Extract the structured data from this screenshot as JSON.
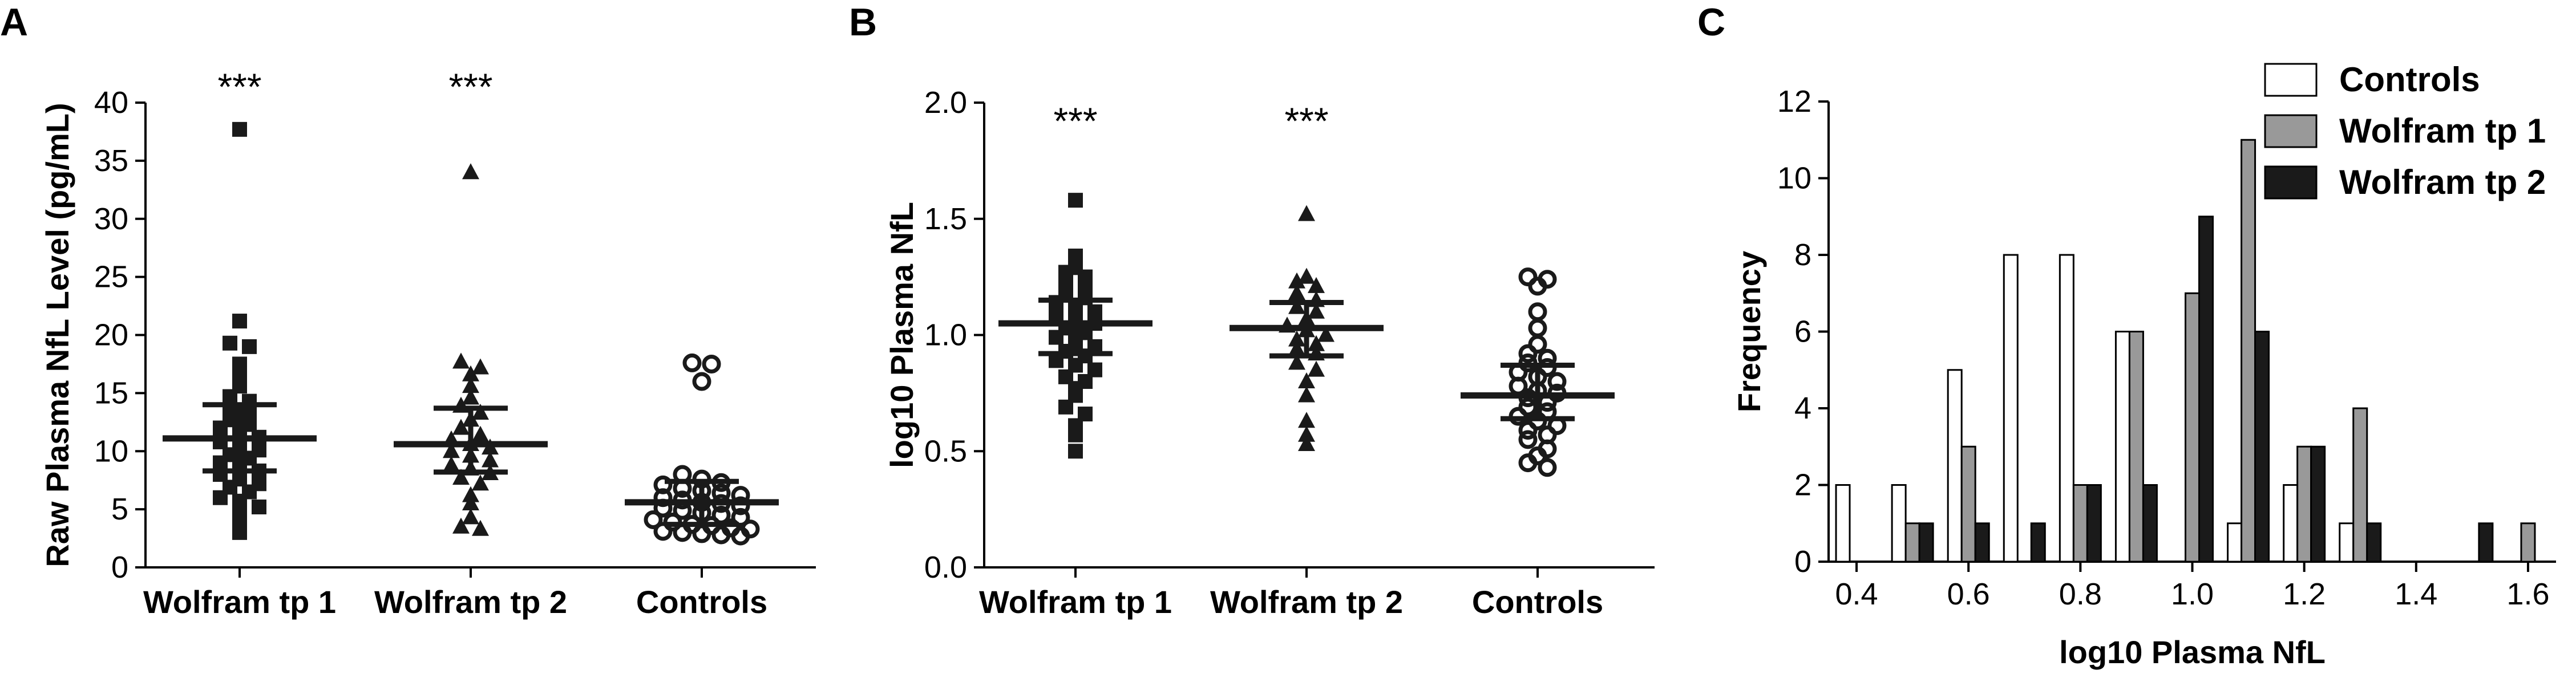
{
  "panel_letters": {
    "a": "A",
    "b": "B",
    "c": "C"
  },
  "colors": {
    "axis": "#000000",
    "controls_fill": "#ffffff",
    "wolfram_tp1_fill": "#999999",
    "wolfram_tp2_fill": "#1a1a1a"
  },
  "chart_data": [
    {
      "panel": "A",
      "type": "scatter",
      "subtype": "dot-plot-with-mean-and-sd",
      "ylabel": "Raw Plasma NfL Level (pg/mL)",
      "xlabel": "",
      "ylim": [
        0,
        40
      ],
      "yticks": [
        "0",
        "5",
        "10",
        "15",
        "20",
        "25",
        "30",
        "35",
        "40"
      ],
      "categories": [
        "Wolfram tp 1",
        "Wolfram tp 2",
        "Controls"
      ],
      "markers": [
        "filled-square",
        "filled-triangle",
        "open-circle"
      ],
      "annotations": [
        "***",
        "***",
        ""
      ],
      "grid": false,
      "series": [
        {
          "category": "Wolfram tp 1",
          "mean": 11.1,
          "sd_low": 8.3,
          "sd_high": 14.0,
          "values": [
            37.7,
            21.2,
            19.3,
            19.0,
            17.5,
            16.3,
            15.6,
            14.7,
            14.3,
            13.8,
            13.4,
            12.7,
            12.3,
            12.0,
            11.6,
            11.2,
            10.8,
            10.5,
            10.1,
            9.7,
            9.4,
            9.0,
            8.7,
            8.3,
            8.0,
            7.6,
            7.2,
            6.9,
            6.5,
            6.0,
            5.7,
            5.2,
            4.6,
            3.6,
            3.0
          ]
        },
        {
          "category": "Wolfram tp 2",
          "mean": 10.6,
          "sd_low": 8.2,
          "sd_high": 13.7,
          "values": [
            34.0,
            17.7,
            17.2,
            16.6,
            15.6,
            14.6,
            13.9,
            13.3,
            12.7,
            12.0,
            11.4,
            11.0,
            10.6,
            10.3,
            10.0,
            9.6,
            9.2,
            8.8,
            8.5,
            8.1,
            7.7,
            7.2,
            6.2,
            5.5,
            4.3,
            3.5,
            3.3
          ]
        },
        {
          "category": "Controls",
          "mean": 5.6,
          "sd_low": 3.7,
          "sd_high": 7.4,
          "values": [
            17.6,
            17.5,
            16.0,
            8.0,
            7.6,
            7.3,
            7.1,
            6.8,
            6.6,
            6.4,
            6.2,
            6.0,
            5.8,
            5.6,
            5.5,
            5.3,
            5.1,
            4.9,
            4.7,
            4.5,
            4.3,
            4.1,
            3.9,
            3.7,
            3.6,
            3.4,
            3.3,
            3.1,
            3.0,
            2.9,
            2.8,
            2.7
          ]
        }
      ]
    },
    {
      "panel": "B",
      "type": "scatter",
      "subtype": "dot-plot-with-mean-and-sd",
      "ylabel": "log10 Plasma NfL",
      "xlabel": "",
      "ylim": [
        0,
        2.0
      ],
      "yticks": [
        "0.0",
        "0.5",
        "1.0",
        "1.5",
        "2.0"
      ],
      "categories": [
        "Wolfram tp 1",
        "Wolfram tp 2",
        "Controls"
      ],
      "markers": [
        "filled-square",
        "filled-triangle",
        "open-circle"
      ],
      "annotations": [
        "***",
        "***",
        ""
      ],
      "grid": false,
      "series": [
        {
          "category": "Wolfram tp 1",
          "mean": 1.05,
          "sd_low": 0.92,
          "sd_high": 1.15,
          "values": [
            1.58,
            1.34,
            1.29,
            1.27,
            1.25,
            1.22,
            1.2,
            1.18,
            1.16,
            1.14,
            1.12,
            1.1,
            1.08,
            1.07,
            1.05,
            1.03,
            1.01,
            0.99,
            0.97,
            0.95,
            0.93,
            0.91,
            0.89,
            0.87,
            0.85,
            0.82,
            0.8,
            0.77,
            0.74,
            0.69,
            0.66,
            0.61,
            0.57,
            0.5
          ]
        },
        {
          "category": "Wolfram tp 2",
          "mean": 1.03,
          "sd_low": 0.91,
          "sd_high": 1.14,
          "values": [
            1.52,
            1.25,
            1.23,
            1.21,
            1.18,
            1.15,
            1.12,
            1.1,
            1.07,
            1.04,
            1.02,
            1.0,
            0.98,
            0.96,
            0.94,
            0.92,
            0.88,
            0.85,
            0.8,
            0.74,
            0.63,
            0.57,
            0.53
          ]
        },
        {
          "category": "Controls",
          "mean": 0.74,
          "sd_low": 0.64,
          "sd_high": 0.87,
          "values": [
            1.25,
            1.24,
            1.21,
            1.1,
            1.03,
            0.96,
            0.92,
            0.9,
            0.88,
            0.86,
            0.84,
            0.82,
            0.8,
            0.78,
            0.76,
            0.75,
            0.73,
            0.71,
            0.69,
            0.67,
            0.65,
            0.63,
            0.61,
            0.59,
            0.57,
            0.55,
            0.51,
            0.48,
            0.45,
            0.43
          ]
        }
      ]
    },
    {
      "panel": "C",
      "type": "bar",
      "subtype": "grouped-histogram",
      "xlabel": "log10 Plasma NfL",
      "ylabel": "Frequency",
      "xlim": [
        0.35,
        1.65
      ],
      "ylim": [
        0,
        12
      ],
      "xticks": [
        "0.4",
        "0.6",
        "0.8",
        "1.0",
        "1.2",
        "1.4",
        "1.6"
      ],
      "yticks": [
        "0",
        "2",
        "4",
        "6",
        "8",
        "10",
        "12"
      ],
      "legend_position": "top-right",
      "grid": false,
      "categories": [
        0.4,
        0.5,
        0.6,
        0.7,
        0.8,
        0.9,
        1.0,
        1.1,
        1.2,
        1.3,
        1.4,
        1.5,
        1.6
      ],
      "series": [
        {
          "name": "Controls",
          "values": [
            2,
            2,
            5,
            8,
            8,
            6,
            0,
            1,
            2,
            1,
            0,
            0,
            0
          ]
        },
        {
          "name": "Wolfram tp 1",
          "values": [
            0,
            1,
            3,
            0,
            2,
            6,
            7,
            11,
            3,
            4,
            0,
            0,
            1
          ]
        },
        {
          "name": "Wolfram tp 2",
          "values": [
            0,
            1,
            1,
            1,
            2,
            2,
            9,
            6,
            3,
            1,
            0,
            1,
            0
          ]
        }
      ]
    }
  ]
}
